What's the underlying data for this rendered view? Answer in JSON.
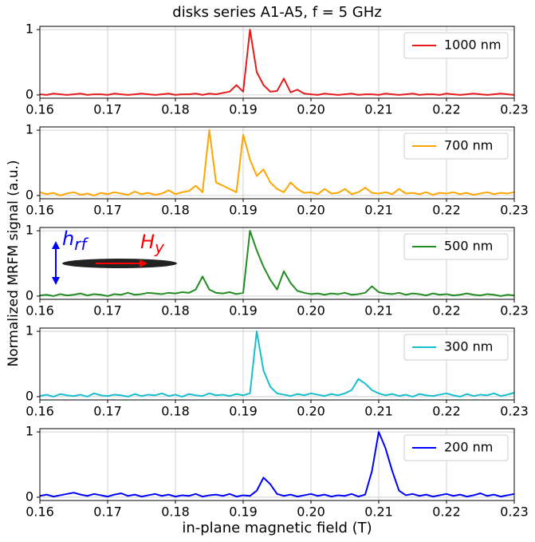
{
  "chart_data": [
    {
      "type": "line",
      "title": "disks series A1-A5, f = 5 GHz",
      "x": [
        0.16,
        0.161,
        0.162,
        0.163,
        0.164,
        0.165,
        0.166,
        0.167,
        0.168,
        0.169,
        0.17,
        0.171,
        0.172,
        0.173,
        0.174,
        0.175,
        0.176,
        0.177,
        0.178,
        0.179,
        0.18,
        0.181,
        0.182,
        0.183,
        0.184,
        0.185,
        0.186,
        0.187,
        0.188,
        0.189,
        0.19,
        0.191,
        0.192,
        0.193,
        0.194,
        0.195,
        0.196,
        0.197,
        0.198,
        0.199,
        0.2,
        0.201,
        0.202,
        0.203,
        0.204,
        0.205,
        0.206,
        0.207,
        0.208,
        0.209,
        0.21,
        0.211,
        0.212,
        0.213,
        0.214,
        0.215,
        0.216,
        0.217,
        0.218,
        0.219,
        0.22,
        0.221,
        0.222,
        0.223,
        0.224,
        0.225,
        0.226,
        0.227,
        0.228,
        0.229,
        0.23
      ],
      "series": [
        {
          "name": "1000 nm",
          "color": "#e41a1c",
          "values": [
            0.01,
            0.0,
            0.02,
            0.01,
            0.0,
            0.01,
            0.02,
            0.0,
            0.01,
            0.01,
            0.0,
            0.02,
            0.01,
            0.0,
            0.01,
            0.02,
            0.01,
            0.0,
            0.01,
            0.02,
            0.0,
            0.01,
            0.01,
            0.02,
            0.0,
            0.02,
            0.01,
            0.03,
            0.05,
            0.15,
            0.05,
            1.0,
            0.35,
            0.15,
            0.05,
            0.06,
            0.25,
            0.04,
            0.08,
            0.02,
            0.01,
            0.0,
            0.02,
            0.01,
            0.0,
            0.01,
            0.02,
            0.0,
            0.01,
            0.01,
            0.0,
            0.02,
            0.01,
            0.0,
            0.01,
            0.02,
            0.0,
            0.01,
            0.01,
            0.0,
            0.02,
            0.01,
            0.0,
            0.01,
            0.02,
            0.01,
            0.0,
            0.01,
            0.02,
            0.01,
            0.0
          ]
        }
      ],
      "xlim": [
        0.16,
        0.23
      ],
      "ylim": [
        -0.05,
        1.05
      ],
      "xticks": [
        0.16,
        0.17,
        0.18,
        0.19,
        {
          "value": 0.2,
          "label": "0.20"
        },
        0.21,
        0.22,
        0.23
      ],
      "yticks": [
        0,
        1
      ],
      "grid": true,
      "legend": "upper right"
    },
    {
      "type": "line",
      "x": [
        0.16,
        0.161,
        0.162,
        0.163,
        0.164,
        0.165,
        0.166,
        0.167,
        0.168,
        0.169,
        0.17,
        0.171,
        0.172,
        0.173,
        0.174,
        0.175,
        0.176,
        0.177,
        0.178,
        0.179,
        0.18,
        0.181,
        0.182,
        0.183,
        0.184,
        0.185,
        0.186,
        0.187,
        0.188,
        0.189,
        0.19,
        0.191,
        0.192,
        0.193,
        0.194,
        0.195,
        0.196,
        0.197,
        0.198,
        0.199,
        0.2,
        0.201,
        0.202,
        0.203,
        0.204,
        0.205,
        0.206,
        0.207,
        0.208,
        0.209,
        0.21,
        0.211,
        0.212,
        0.213,
        0.214,
        0.215,
        0.216,
        0.217,
        0.218,
        0.219,
        0.22,
        0.221,
        0.222,
        0.223,
        0.224,
        0.225,
        0.226,
        0.227,
        0.228,
        0.229,
        0.23
      ],
      "series": [
        {
          "name": "700 nm",
          "color": "#ffa500",
          "values": [
            0.05,
            0.02,
            0.04,
            0.0,
            0.03,
            0.05,
            0.01,
            0.03,
            0.0,
            0.04,
            0.02,
            0.05,
            0.03,
            0.01,
            0.06,
            0.02,
            0.04,
            0.01,
            0.03,
            0.08,
            0.02,
            0.05,
            0.07,
            0.15,
            0.05,
            1.0,
            0.2,
            0.15,
            0.1,
            0.05,
            0.93,
            0.55,
            0.3,
            0.4,
            0.2,
            0.1,
            0.05,
            0.2,
            0.1,
            0.04,
            0.05,
            0.02,
            0.1,
            0.03,
            0.04,
            0.1,
            0.02,
            0.05,
            0.12,
            0.04,
            0.03,
            0.05,
            0.02,
            0.1,
            0.03,
            0.04,
            0.02,
            0.05,
            0.01,
            0.04,
            0.03,
            0.05,
            0.02,
            0.04,
            0.01,
            0.03,
            0.05,
            0.02,
            0.04,
            0.03,
            0.05
          ]
        }
      ],
      "xlim": [
        0.16,
        0.23
      ],
      "ylim": [
        -0.05,
        1.05
      ],
      "xticks": [
        0.16,
        0.17,
        0.18,
        0.19,
        {
          "value": 0.2,
          "label": "0.20"
        },
        0.21,
        0.22,
        0.23
      ],
      "yticks": [
        0,
        1
      ],
      "grid": true,
      "legend": "upper right"
    },
    {
      "type": "line",
      "ylabel": "Normalized MRFM signal (a.u.)",
      "annotations": [
        {
          "text": "h",
          "sub": "rf",
          "color": "#0000ff"
        },
        {
          "text": "H",
          "sub": "y",
          "color": "#ff0000"
        }
      ],
      "x": [
        0.16,
        0.161,
        0.162,
        0.163,
        0.164,
        0.165,
        0.166,
        0.167,
        0.168,
        0.169,
        0.17,
        0.171,
        0.172,
        0.173,
        0.174,
        0.175,
        0.176,
        0.177,
        0.178,
        0.179,
        0.18,
        0.181,
        0.182,
        0.183,
        0.184,
        0.185,
        0.186,
        0.187,
        0.188,
        0.189,
        0.19,
        0.191,
        0.192,
        0.193,
        0.194,
        0.195,
        0.196,
        0.197,
        0.198,
        0.199,
        0.2,
        0.201,
        0.202,
        0.203,
        0.204,
        0.205,
        0.206,
        0.207,
        0.208,
        0.209,
        0.21,
        0.211,
        0.212,
        0.213,
        0.214,
        0.215,
        0.216,
        0.217,
        0.218,
        0.219,
        0.22,
        0.221,
        0.222,
        0.223,
        0.224,
        0.225,
        0.226,
        0.227,
        0.228,
        0.229,
        0.23
      ],
      "series": [
        {
          "name": "500 nm",
          "color": "#228b22",
          "values": [
            0.01,
            0.02,
            0.0,
            0.03,
            0.01,
            0.02,
            0.04,
            0.01,
            0.03,
            0.02,
            0.0,
            0.03,
            0.02,
            0.05,
            0.02,
            0.03,
            0.05,
            0.04,
            0.03,
            0.05,
            0.04,
            0.06,
            0.05,
            0.1,
            0.3,
            0.1,
            0.05,
            0.04,
            0.06,
            0.03,
            0.05,
            1.0,
            0.7,
            0.45,
            0.25,
            0.1,
            0.38,
            0.2,
            0.08,
            0.05,
            0.03,
            0.04,
            0.02,
            0.04,
            0.03,
            0.05,
            0.02,
            0.03,
            0.05,
            0.15,
            0.06,
            0.04,
            0.03,
            0.05,
            0.02,
            0.04,
            0.03,
            0.01,
            0.04,
            0.02,
            0.03,
            0.01,
            0.02,
            0.04,
            0.02,
            0.01,
            0.03,
            0.02,
            0.0,
            0.02,
            0.01
          ]
        }
      ],
      "xlim": [
        0.16,
        0.23
      ],
      "ylim": [
        -0.05,
        1.05
      ],
      "xticks": [
        0.16,
        0.17,
        0.18,
        0.19,
        {
          "value": 0.2,
          "label": "0.20"
        },
        0.21,
        0.22,
        0.23
      ],
      "yticks": [
        0,
        1
      ],
      "grid": true,
      "legend": "upper right"
    },
    {
      "type": "line",
      "x": [
        0.16,
        0.161,
        0.162,
        0.163,
        0.164,
        0.165,
        0.166,
        0.167,
        0.168,
        0.169,
        0.17,
        0.171,
        0.172,
        0.173,
        0.174,
        0.175,
        0.176,
        0.177,
        0.178,
        0.179,
        0.18,
        0.181,
        0.182,
        0.183,
        0.184,
        0.185,
        0.186,
        0.187,
        0.188,
        0.189,
        0.19,
        0.191,
        0.192,
        0.193,
        0.194,
        0.195,
        0.196,
        0.197,
        0.198,
        0.199,
        0.2,
        0.201,
        0.202,
        0.203,
        0.204,
        0.205,
        0.206,
        0.207,
        0.208,
        0.209,
        0.21,
        0.211,
        0.212,
        0.213,
        0.214,
        0.215,
        0.216,
        0.217,
        0.218,
        0.219,
        0.22,
        0.221,
        0.222,
        0.223,
        0.224,
        0.225,
        0.226,
        0.227,
        0.228,
        0.229,
        0.23
      ],
      "series": [
        {
          "name": "300 nm",
          "color": "#17becf",
          "values": [
            0.01,
            0.03,
            0.0,
            0.04,
            0.02,
            0.01,
            0.03,
            0.0,
            0.05,
            0.02,
            0.01,
            0.03,
            0.02,
            0.0,
            0.04,
            0.01,
            0.03,
            0.02,
            0.05,
            0.01,
            0.03,
            0.0,
            0.04,
            0.02,
            0.01,
            0.05,
            0.02,
            0.03,
            0.01,
            0.04,
            0.02,
            0.05,
            1.0,
            0.4,
            0.15,
            0.05,
            0.03,
            0.01,
            0.04,
            0.02,
            0.05,
            0.03,
            0.01,
            0.04,
            0.02,
            0.05,
            0.1,
            0.27,
            0.2,
            0.1,
            0.05,
            0.02,
            0.04,
            0.01,
            0.03,
            0.0,
            0.04,
            0.02,
            0.01,
            0.03,
            0.05,
            0.02,
            0.0,
            0.04,
            0.01,
            0.03,
            0.02,
            0.05,
            0.01,
            0.03,
            0.06
          ]
        }
      ],
      "xlim": [
        0.16,
        0.23
      ],
      "ylim": [
        -0.05,
        1.05
      ],
      "xticks": [
        0.16,
        0.17,
        0.18,
        0.19,
        {
          "value": 0.2,
          "label": "0.20"
        },
        0.21,
        0.22,
        0.23
      ],
      "yticks": [
        0,
        1
      ],
      "grid": true,
      "legend": "upper right"
    },
    {
      "type": "line",
      "xlabel": "in-plane magnetic field (T)",
      "x": [
        0.16,
        0.161,
        0.162,
        0.163,
        0.164,
        0.165,
        0.166,
        0.167,
        0.168,
        0.169,
        0.17,
        0.171,
        0.172,
        0.173,
        0.174,
        0.175,
        0.176,
        0.177,
        0.178,
        0.179,
        0.18,
        0.181,
        0.182,
        0.183,
        0.184,
        0.185,
        0.186,
        0.187,
        0.188,
        0.189,
        0.19,
        0.191,
        0.192,
        0.193,
        0.194,
        0.195,
        0.196,
        0.197,
        0.198,
        0.199,
        0.2,
        0.201,
        0.202,
        0.203,
        0.204,
        0.205,
        0.206,
        0.207,
        0.208,
        0.209,
        0.21,
        0.211,
        0.212,
        0.213,
        0.214,
        0.215,
        0.216,
        0.217,
        0.218,
        0.219,
        0.22,
        0.221,
        0.222,
        0.223,
        0.224,
        0.225,
        0.226,
        0.227,
        0.228,
        0.229,
        0.23
      ],
      "series": [
        {
          "name": "200 nm",
          "color": "#0000ff",
          "values": [
            0.02,
            0.04,
            0.01,
            0.03,
            0.05,
            0.07,
            0.04,
            0.02,
            0.05,
            0.03,
            0.01,
            0.04,
            0.06,
            0.02,
            0.04,
            0.01,
            0.03,
            0.05,
            0.02,
            0.04,
            0.01,
            0.03,
            0.02,
            0.05,
            0.01,
            0.03,
            0.04,
            0.02,
            0.05,
            0.01,
            0.03,
            0.02,
            0.1,
            0.3,
            0.2,
            0.05,
            0.02,
            0.04,
            0.01,
            0.03,
            0.05,
            0.02,
            0.04,
            0.01,
            0.03,
            0.02,
            0.05,
            0.01,
            0.04,
            0.4,
            1.0,
            0.75,
            0.4,
            0.1,
            0.03,
            0.05,
            0.02,
            0.04,
            0.01,
            0.03,
            0.05,
            0.02,
            0.04,
            0.01,
            0.03,
            0.06,
            0.02,
            0.04,
            0.01,
            0.03,
            0.05
          ]
        }
      ],
      "xlim": [
        0.16,
        0.23
      ],
      "ylim": [
        -0.05,
        1.05
      ],
      "xticks": [
        0.16,
        0.17,
        0.18,
        0.19,
        {
          "value": 0.2,
          "label": "0.20"
        },
        0.21,
        0.22,
        0.23
      ],
      "yticks": [
        0,
        1
      ],
      "grid": true,
      "legend": "upper right"
    }
  ]
}
